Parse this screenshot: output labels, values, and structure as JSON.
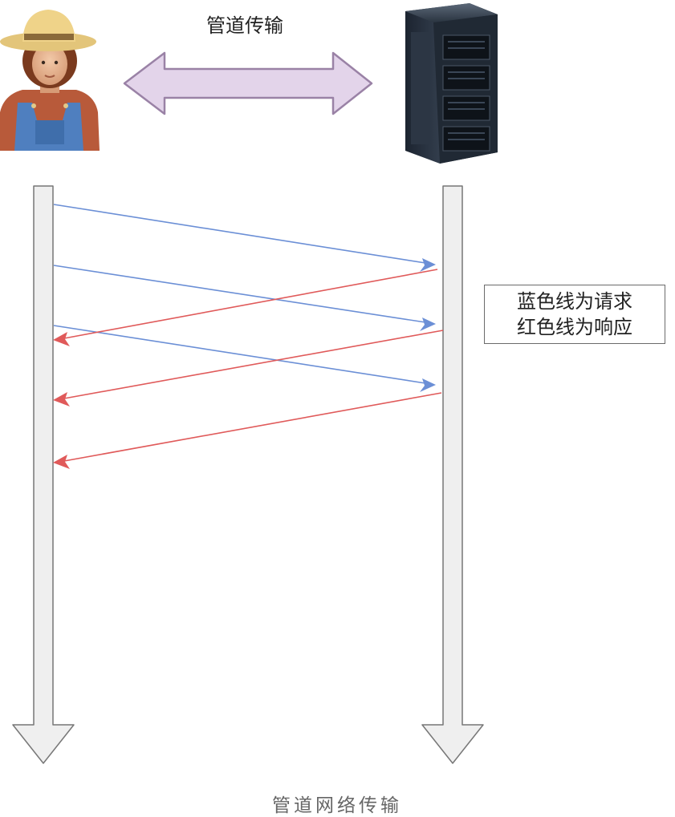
{
  "diagram": {
    "title": "管道传输",
    "caption": "管道网络传输",
    "legend": {
      "line1": "蓝色线为请求",
      "line2": "红色线为响应"
    },
    "colors": {
      "request": "#6b8fd6",
      "response": "#e05a5a",
      "pipe_arrow_fill": "#e3d4ea",
      "pipe_arrow_stroke": "#9a82a6",
      "lifeline_fill": "#efefef",
      "lifeline_stroke": "#777777"
    },
    "icons": {
      "client": "farmer-icon",
      "server": "server-rack-icon"
    },
    "messages": [
      {
        "kind": "request",
        "from": "client",
        "to": "server",
        "order": 1
      },
      {
        "kind": "request",
        "from": "client",
        "to": "server",
        "order": 2
      },
      {
        "kind": "response",
        "from": "server",
        "to": "client",
        "order": 1
      },
      {
        "kind": "request",
        "from": "client",
        "to": "server",
        "order": 3
      },
      {
        "kind": "response",
        "from": "server",
        "to": "client",
        "order": 2
      },
      {
        "kind": "response",
        "from": "server",
        "to": "client",
        "order": 3
      }
    ]
  }
}
